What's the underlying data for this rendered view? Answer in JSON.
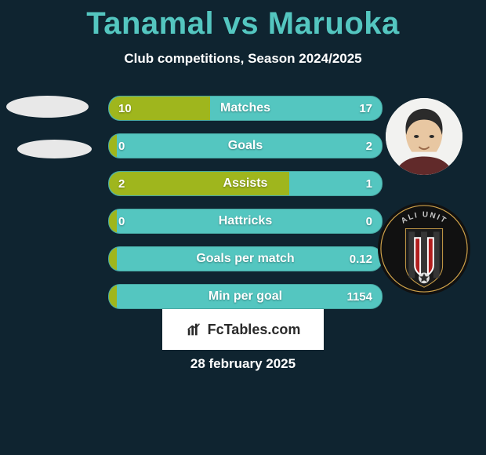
{
  "title_color": "#54c6c0",
  "bg_color": "#0f2430",
  "title": "Tanamal vs Maruoka",
  "subtitle": "Club competitions, Season 2024/2025",
  "date": "28 february 2025",
  "brand": {
    "text": "FcTables.com",
    "icon_name": "fctables-mark-icon",
    "bg_color": "#ffffff",
    "text_color": "#2a2a2a"
  },
  "bar_fill_color": "#9fb61d",
  "bar_bg_color": "#54c6c0",
  "bar_text_color": "#ffffff",
  "rows": [
    {
      "label": "Matches",
      "left": "10",
      "right": "17",
      "fill_pct": 37
    },
    {
      "label": "Goals",
      "left": "0",
      "right": "2",
      "fill_pct": 3
    },
    {
      "label": "Assists",
      "left": "2",
      "right": "1",
      "fill_pct": 66
    },
    {
      "label": "Hattricks",
      "left": "0",
      "right": "0",
      "fill_pct": 3
    },
    {
      "label": "Goals per match",
      "left": "",
      "right": "0.12",
      "fill_pct": 3
    },
    {
      "label": "Min per goal",
      "left": "",
      "right": "1154",
      "fill_pct": 3
    }
  ],
  "left_avatars": [
    {
      "name": "player-left-ellipse-1",
      "bg": "#e8e8e8"
    },
    {
      "name": "player-left-ellipse-2",
      "bg": "#e8e8e8"
    }
  ],
  "right_avatar": {
    "name": "player-right-avatar",
    "bg": "#f2f2f0",
    "skin": "#e8c7a2",
    "hair": "#2b2b2b",
    "shirt": "#612a2a"
  },
  "club_crest": {
    "name": "club-crest-right",
    "label": "ALI UNIT",
    "bg": "#111111",
    "stripe": "#3b3b3b",
    "accent": "#b11e1e",
    "ring": "#cfa24a"
  }
}
